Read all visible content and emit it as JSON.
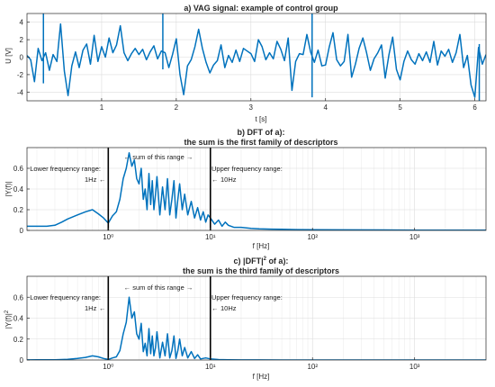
{
  "chart_data": [
    {
      "type": "line",
      "title": "a) VAG signal: example of control group",
      "xlabel": "t [s]",
      "ylabel": "U [V]",
      "xlim": [
        0,
        6.15
      ],
      "ylim": [
        -5,
        5
      ],
      "xscale": "linear",
      "grid": true,
      "color": "#0072bd",
      "xticks": [
        1,
        2,
        3,
        4,
        5,
        6
      ],
      "xtick_labels": [
        "1",
        "2",
        "3",
        "4",
        "5",
        "6"
      ],
      "yticks": [
        -4,
        -2,
        0,
        2,
        4
      ],
      "ytick_labels": [
        "-4",
        "-2",
        "0",
        "2",
        "4"
      ],
      "series": [
        {
          "x": [
            0.0,
            0.05,
            0.1,
            0.15,
            0.2,
            0.25,
            0.3,
            0.35,
            0.4,
            0.45,
            0.5,
            0.55,
            0.6,
            0.65,
            0.7,
            0.75,
            0.8,
            0.85,
            0.9,
            0.95,
            1.0,
            1.05,
            1.1,
            1.15,
            1.2,
            1.25,
            1.3,
            1.35,
            1.4,
            1.45,
            1.5,
            1.55,
            1.6,
            1.65,
            1.7,
            1.75,
            1.8,
            1.85,
            1.9,
            1.95,
            2.0,
            2.05,
            2.1,
            2.15,
            2.2,
            2.25,
            2.3,
            2.35,
            2.4,
            2.45,
            2.5,
            2.55,
            2.6,
            2.65,
            2.7,
            2.75,
            2.8,
            2.85,
            2.9,
            2.95,
            3.0,
            3.05,
            3.1,
            3.15,
            3.2,
            3.25,
            3.3,
            3.35,
            3.4,
            3.45,
            3.5,
            3.55,
            3.6,
            3.65,
            3.7,
            3.75,
            3.8,
            3.85,
            3.9,
            3.95,
            4.0,
            4.05,
            4.1,
            4.15,
            4.2,
            4.25,
            4.3,
            4.35,
            4.4,
            4.45,
            4.5,
            4.55,
            4.6,
            4.65,
            4.7,
            4.75,
            4.8,
            4.85,
            4.9,
            4.95,
            5.0,
            5.05,
            5.1,
            5.15,
            5.2,
            5.25,
            5.3,
            5.35,
            5.4,
            5.45,
            5.5,
            5.55,
            5.6,
            5.65,
            5.7,
            5.75,
            5.8,
            5.85,
            5.9,
            5.95,
            6.0,
            6.05,
            6.1,
            6.15
          ],
          "y": [
            0.2,
            -0.3,
            -2.8,
            1.0,
            -0.4,
            0.5,
            -1.5,
            0.3,
            -0.5,
            3.8,
            -1.6,
            -4.4,
            -1.0,
            0.6,
            -1.2,
            0.8,
            1.5,
            -0.8,
            2.5,
            -0.5,
            1.2,
            0.0,
            2.2,
            0.5,
            1.4,
            3.6,
            0.5,
            -0.4,
            0.4,
            1.0,
            0.3,
            0.9,
            -0.3,
            0.6,
            1.3,
            -0.2,
            0.7,
            0.5,
            -1.2,
            0.3,
            2.1,
            -2.0,
            -4.3,
            -1.0,
            -0.3,
            1.2,
            3.2,
            1.0,
            -0.6,
            -1.8,
            -0.9,
            -0.4,
            1.4,
            -1.2,
            0.2,
            -0.6,
            0.8,
            -0.5,
            1.0,
            0.7,
            0.4,
            -0.5,
            2.0,
            1.2,
            -0.3,
            0.5,
            -0.2,
            1.8,
            0.9,
            -0.4,
            2.2,
            -3.8,
            -0.5,
            0.4,
            0.3,
            2.6,
            0.6,
            -0.6,
            0.8,
            -1.0,
            -0.9,
            1.2,
            2.8,
            -0.3,
            -1.0,
            -0.5,
            2.6,
            -2.3,
            -0.8,
            1.0,
            2.2,
            0.5,
            -1.5,
            -0.2,
            0.5,
            1.4,
            -2.4,
            0.3,
            2.3,
            -1.4,
            -2.6,
            -0.5,
            0.7,
            -0.3,
            -0.8,
            0.4,
            -0.4,
            0.6,
            -0.6,
            1.8,
            -0.9,
            0.7,
            0.1,
            0.9,
            -0.6,
            0.5,
            2.6,
            -1.2,
            0.2,
            -3.2,
            -4.6,
            1.1,
            -0.8,
            0.3
          ]
        }
      ],
      "spikes": [
        {
          "x": 0.22,
          "y0": -3.0,
          "y1": 5.0
        },
        {
          "x": 1.82,
          "y0": -1.4,
          "y1": 5.0
        },
        {
          "x": 3.82,
          "y0": -4.6,
          "y1": 5.0
        },
        {
          "x": 6.06,
          "y0": -5.0,
          "y1": 1.5
        }
      ]
    },
    {
      "type": "line",
      "title": "b) DFT of a):",
      "subtitle": "the sum is the first family of descriptors",
      "xlabel": "f [Hz]",
      "ylabel": "|Y(f)|",
      "xlim": [
        0.16,
        5000
      ],
      "ylim": [
        0,
        0.8
      ],
      "xscale": "log",
      "grid": true,
      "color": "#0072bd",
      "xticks": [
        1,
        10,
        100,
        1000
      ],
      "xtick_labels": [
        "10⁰",
        "10¹",
        "10²",
        "10³"
      ],
      "yticks": [
        0,
        0.2,
        0.4,
        0.6
      ],
      "ytick_labels": [
        "0",
        "0.2",
        "0.4",
        "0.6"
      ],
      "vlines": [
        1,
        10
      ],
      "annotations": {
        "left_label": "Lower frequency range:",
        "left_value": "1Hz",
        "left_arrow": "←",
        "middle": "← sum of this range →",
        "right_label": "Upper frequency range:",
        "right_arrow": "←",
        "right_value": "10Hz"
      },
      "series": [
        {
          "x": [
            0.16,
            0.2,
            0.25,
            0.3,
            0.35,
            0.4,
            0.5,
            0.6,
            0.7,
            0.8,
            0.9,
            1.0,
            1.1,
            1.2,
            1.3,
            1.4,
            1.5,
            1.6,
            1.7,
            1.8,
            1.9,
            2.0,
            2.1,
            2.2,
            2.3,
            2.4,
            2.5,
            2.6,
            2.7,
            2.8,
            2.9,
            3.0,
            3.2,
            3.4,
            3.6,
            3.8,
            4.0,
            4.2,
            4.4,
            4.6,
            4.8,
            5.0,
            5.3,
            5.6,
            6.0,
            6.5,
            7.0,
            7.5,
            8.0,
            8.5,
            9.0,
            9.5,
            10,
            11,
            12,
            13,
            14,
            15,
            17,
            20,
            25,
            30,
            40,
            50,
            70,
            100,
            200,
            500,
            1000,
            2000,
            5000
          ],
          "y": [
            0.04,
            0.04,
            0.04,
            0.05,
            0.08,
            0.11,
            0.15,
            0.18,
            0.2,
            0.16,
            0.12,
            0.07,
            0.14,
            0.18,
            0.3,
            0.5,
            0.6,
            0.75,
            0.62,
            0.68,
            0.5,
            0.45,
            0.6,
            0.3,
            0.4,
            0.2,
            0.55,
            0.25,
            0.48,
            0.2,
            0.35,
            0.52,
            0.15,
            0.42,
            0.2,
            0.5,
            0.15,
            0.3,
            0.48,
            0.12,
            0.3,
            0.45,
            0.2,
            0.35,
            0.15,
            0.28,
            0.12,
            0.22,
            0.1,
            0.18,
            0.08,
            0.15,
            0.12,
            0.06,
            0.1,
            0.04,
            0.08,
            0.05,
            0.03,
            0.03,
            0.02,
            0.015,
            0.012,
            0.01,
            0.008,
            0.006,
            0.005,
            0.004,
            0.003,
            0.003,
            0.003
          ]
        }
      ]
    },
    {
      "type": "line",
      "title": "c) |DFT|",
      "title_sup": "2",
      "title_end": " of a):",
      "subtitle": "the sum is the third family of descriptors",
      "xlabel": "f [Hz]",
      "ylabel": "|Y(f)|",
      "ylabel_sup": "2",
      "xlim": [
        0.16,
        5000
      ],
      "ylim": [
        0,
        0.8
      ],
      "xscale": "log",
      "grid": true,
      "color": "#0072bd",
      "xticks": [
        1,
        10,
        100,
        1000
      ],
      "xtick_labels": [
        "10⁰",
        "10¹",
        "10²",
        "10³"
      ],
      "yticks": [
        0,
        0.2,
        0.4,
        0.6
      ],
      "ytick_labels": [
        "0",
        "0.2",
        "0.4",
        "0.6"
      ],
      "vlines": [
        1,
        10
      ],
      "annotations": {
        "left_label": "Lower frequency range:",
        "left_value": "1Hz",
        "left_arrow": "←",
        "middle": "← sum of this range →",
        "right_label": "Upper frequency range:",
        "right_arrow": "←",
        "right_value": "10Hz"
      },
      "series": [
        {
          "x": [
            0.16,
            0.2,
            0.3,
            0.4,
            0.5,
            0.6,
            0.7,
            0.8,
            0.9,
            1.0,
            1.1,
            1.2,
            1.3,
            1.4,
            1.5,
            1.6,
            1.7,
            1.8,
            1.9,
            2.0,
            2.1,
            2.2,
            2.3,
            2.4,
            2.5,
            2.6,
            2.7,
            2.8,
            2.9,
            3.0,
            3.2,
            3.4,
            3.6,
            3.8,
            4.0,
            4.2,
            4.4,
            4.6,
            4.8,
            5.0,
            5.3,
            5.6,
            6.0,
            6.5,
            7.0,
            7.5,
            8.0,
            9.0,
            10,
            12,
            15,
            20,
            30,
            50,
            100,
            200,
            500,
            1000,
            2000,
            5000
          ],
          "y": [
            0.001,
            0.002,
            0.003,
            0.006,
            0.015,
            0.025,
            0.04,
            0.03,
            0.015,
            0.005,
            0.02,
            0.03,
            0.09,
            0.25,
            0.36,
            0.6,
            0.4,
            0.46,
            0.25,
            0.2,
            0.35,
            0.08,
            0.16,
            0.04,
            0.3,
            0.06,
            0.23,
            0.04,
            0.12,
            0.27,
            0.02,
            0.17,
            0.04,
            0.25,
            0.02,
            0.09,
            0.23,
            0.015,
            0.09,
            0.2,
            0.04,
            0.12,
            0.02,
            0.08,
            0.015,
            0.05,
            0.01,
            0.02,
            0.01,
            0.004,
            0.002,
            0.001,
            0.0005,
            0.0003,
            0.0002,
            0.0001,
            0.0001,
            0.0001,
            0.0001,
            0.0001
          ]
        }
      ]
    }
  ]
}
